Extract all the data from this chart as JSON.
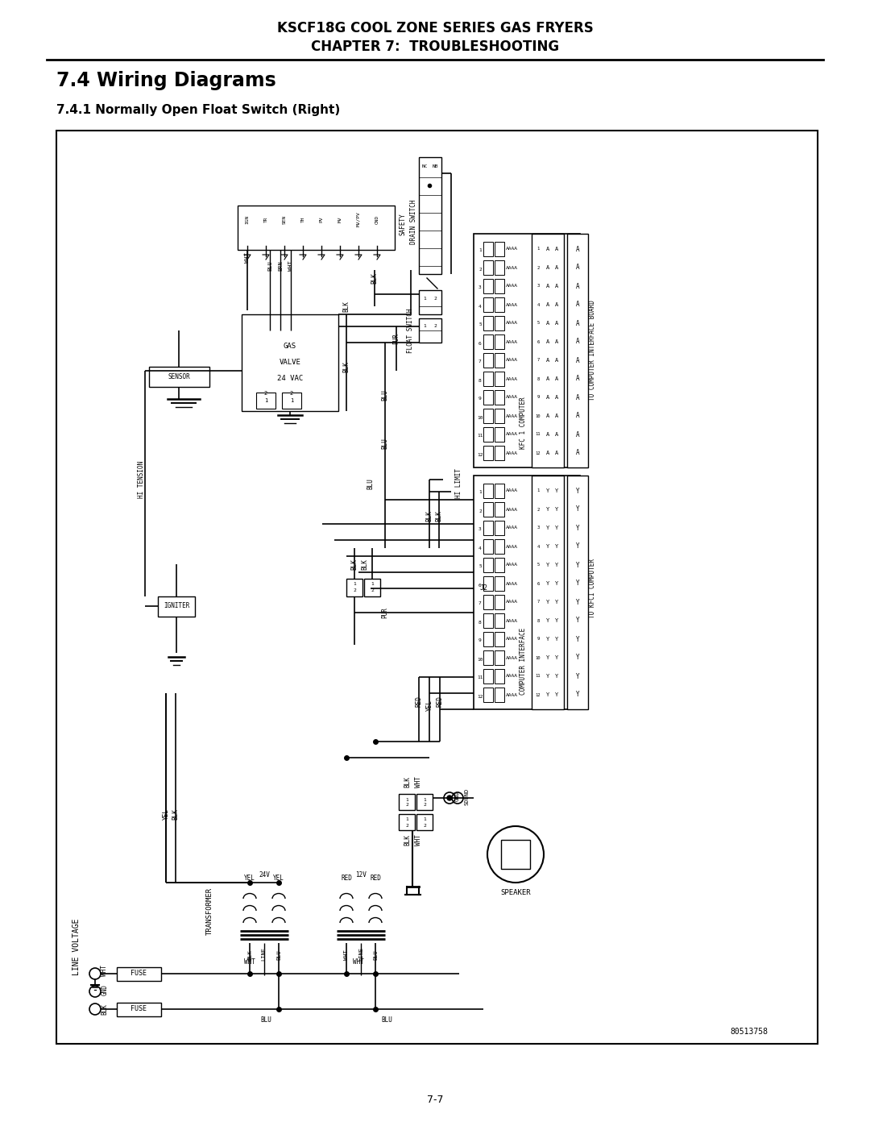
{
  "title_line1": "KSCF18G COOL ZONE SERIES GAS FRYERS",
  "title_line2": "CHAPTER 7:  TROUBLESHOOTING",
  "section_title": "7.4 Wiring Diagrams",
  "subsection_title": "7.4.1 Normally Open Float Switch (Right)",
  "page_number": "7-7",
  "part_number": "80513758",
  "bg": "#ffffff"
}
